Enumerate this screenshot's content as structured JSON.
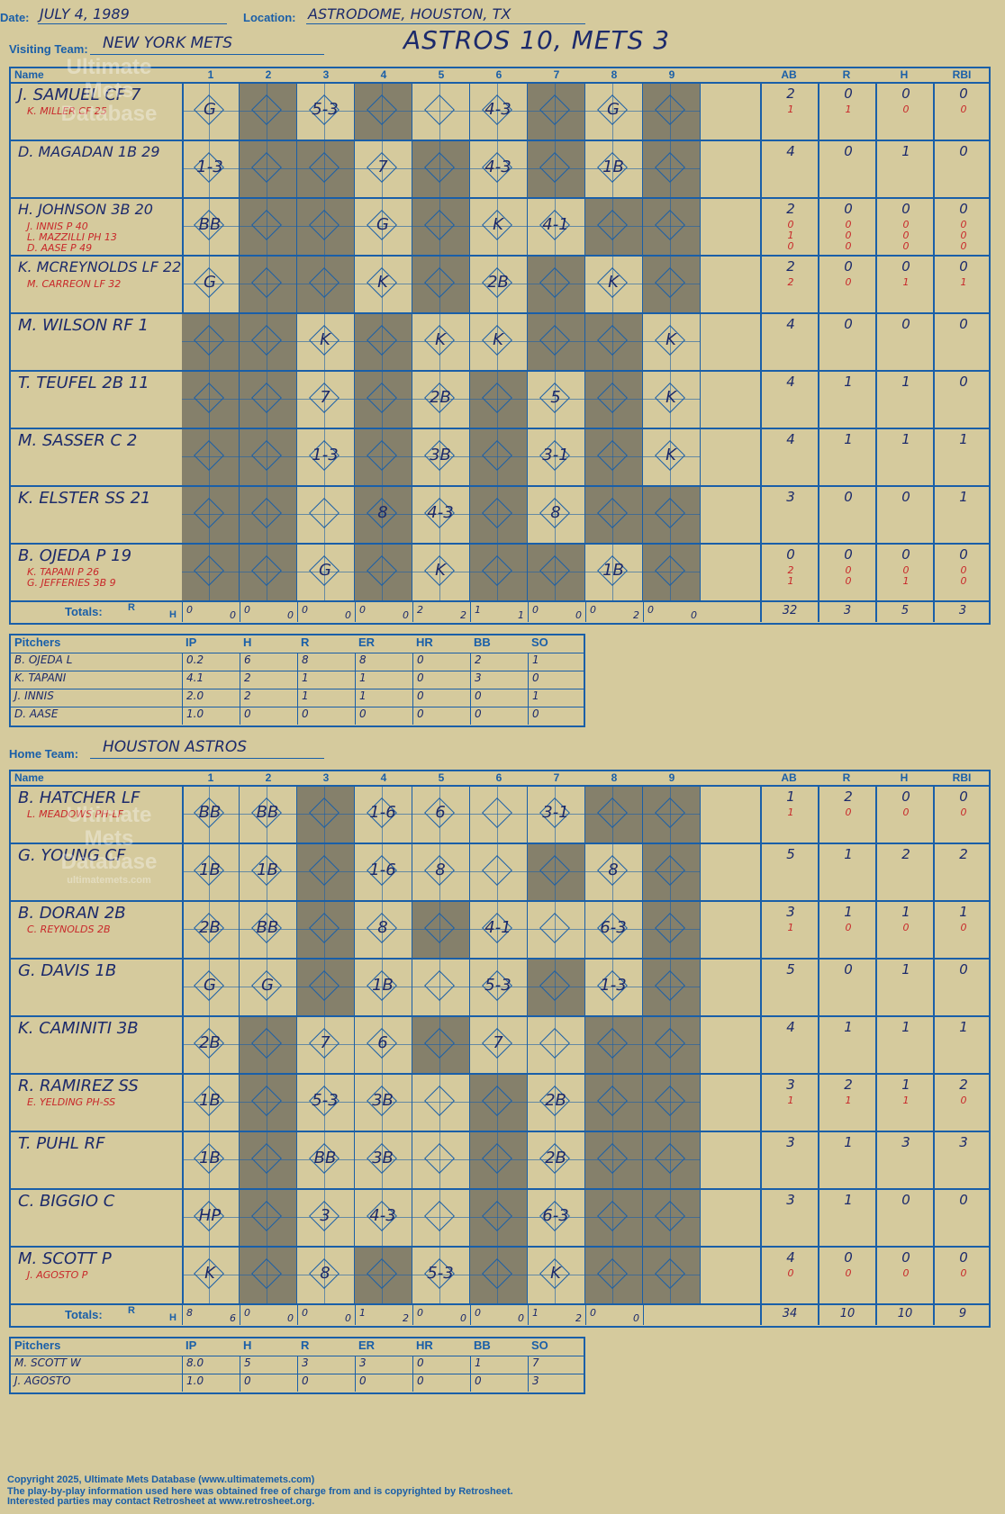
{
  "header": {
    "date_label": "Date:",
    "date_value": "JULY 4, 1989",
    "location_label": "Location:",
    "location_value": "ASTRODOME, HOUSTON, TX",
    "visiting_label": "Visiting Team:",
    "visiting_value": "NEW YORK METS",
    "home_label": "Home Team:",
    "home_value": "HOUSTON ASTROS",
    "result": "ASTROS 10, METS 3"
  },
  "grid_headers": {
    "name": "Name",
    "innings": [
      "1",
      "2",
      "3",
      "4",
      "5",
      "6",
      "7",
      "8",
      "9"
    ],
    "stats": [
      "AB",
      "R",
      "H",
      "RBI"
    ],
    "totals": "Totals:",
    "r": "R",
    "h": "H"
  },
  "watermark": {
    "line1": "Ultimate",
    "line2": "Mets",
    "line3": "Database",
    "url": "ultimatemets.com"
  },
  "visitors": {
    "batters": [
      {
        "name": "J. SAMUEL CF  7",
        "subs": [
          "K. MILLER CF  25"
        ],
        "stats": [
          "2",
          "0",
          "0",
          "0"
        ],
        "subs_stats": [
          [
            "1",
            "1",
            "0",
            "0"
          ]
        ],
        "plays": {
          "1": "G",
          "3": "5-3",
          "6": "4-3",
          "8": "G"
        }
      },
      {
        "name": "D. MAGADAN 1B  29",
        "subs": [],
        "stats": [
          "4",
          "0",
          "1",
          "0"
        ],
        "subs_stats": [],
        "plays": {
          "1": "1-3",
          "4": "7",
          "6": "4-3",
          "8": "1B"
        }
      },
      {
        "name": "H. JOHNSON 3B  20",
        "subs": [
          "J. INNIS P  40",
          "L. MAZZILLI PH  13",
          "D. AASE P  49"
        ],
        "stats": [
          "2",
          "0",
          "0",
          "0"
        ],
        "subs_stats": [
          [
            "0",
            "0",
            "0",
            "0"
          ],
          [
            "1",
            "0",
            "0",
            "0"
          ],
          [
            "0",
            "0",
            "0",
            "0"
          ]
        ],
        "plays": {
          "1": "BB",
          "4": "G",
          "6": "K",
          "7": "4-1"
        }
      },
      {
        "name": "K. MCREYNOLDS LF  22",
        "subs": [
          "M. CARREON LF  32"
        ],
        "stats": [
          "2",
          "0",
          "0",
          "0"
        ],
        "subs_stats": [
          [
            "2",
            "0",
            "1",
            "1"
          ]
        ],
        "plays": {
          "1": "G",
          "4": "K",
          "6": "2B",
          "8": "K"
        }
      },
      {
        "name": "M. WILSON RF  1",
        "subs": [],
        "stats": [
          "4",
          "0",
          "0",
          "0"
        ],
        "subs_stats": [],
        "plays": {
          "3": "K",
          "5": "K",
          "6": "K",
          "9": "K"
        }
      },
      {
        "name": "T. TEUFEL 2B  11",
        "subs": [],
        "stats": [
          "4",
          "1",
          "1",
          "0"
        ],
        "subs_stats": [],
        "plays": {
          "3": "7",
          "5": "2B",
          "7": "5",
          "9": "K"
        }
      },
      {
        "name": "M. SASSER C  2",
        "subs": [],
        "stats": [
          "4",
          "1",
          "1",
          "1"
        ],
        "subs_stats": [],
        "plays": {
          "3": "1-3",
          "5": "3B",
          "7": "3-1",
          "9": "K"
        }
      },
      {
        "name": "K. ELSTER SS  21",
        "subs": [],
        "stats": [
          "3",
          "0",
          "0",
          "1"
        ],
        "subs_stats": [],
        "plays": {
          "4": "8",
          "5": "4-3",
          "7": "8"
        }
      },
      {
        "name": "B. OJEDA P  19",
        "subs": [
          "K. TAPANI P  26",
          "G. JEFFERIES 3B  9"
        ],
        "stats": [
          "0",
          "0",
          "0",
          "0"
        ],
        "subs_stats": [
          [
            "2",
            "0",
            "0",
            "0"
          ],
          [
            "1",
            "0",
            "1",
            "0"
          ]
        ],
        "plays": {
          "3": "G",
          "5": "K",
          "8": "1B"
        }
      }
    ],
    "totals": [
      [
        "0",
        "0"
      ],
      [
        "0",
        "0"
      ],
      [
        "0",
        "0"
      ],
      [
        "0",
        "0"
      ],
      [
        "2",
        "2"
      ],
      [
        "1",
        "1"
      ],
      [
        "0",
        "0"
      ],
      [
        "0",
        "2"
      ],
      [
        "0",
        "0"
      ]
    ],
    "totals_stats": [
      "32",
      "3",
      "5",
      "3"
    ],
    "pitchers": [
      {
        "name": "B. OJEDA  L",
        "ip": "0.2",
        "h": "6",
        "r": "8",
        "er": "8",
        "hr": "0",
        "bb": "2",
        "so": "1"
      },
      {
        "name": "K. TAPANI",
        "ip": "4.1",
        "h": "2",
        "r": "1",
        "er": "1",
        "hr": "0",
        "bb": "3",
        "so": "0"
      },
      {
        "name": "J. INNIS",
        "ip": "2.0",
        "h": "2",
        "r": "1",
        "er": "1",
        "hr": "0",
        "bb": "0",
        "so": "1"
      },
      {
        "name": "D. AASE",
        "ip": "1.0",
        "h": "0",
        "r": "0",
        "er": "0",
        "hr": "0",
        "bb": "0",
        "so": "0"
      }
    ]
  },
  "home": {
    "batters": [
      {
        "name": "B. HATCHER LF",
        "subs": [
          "L. MEADOWS PH-LF"
        ],
        "stats": [
          "1",
          "2",
          "0",
          "0"
        ],
        "subs_stats": [
          [
            "1",
            "0",
            "0",
            "0"
          ]
        ],
        "plays": {
          "1": "BB",
          "2": "BB",
          "4": "1-6",
          "5": "6",
          "7": "3-1"
        }
      },
      {
        "name": "G. YOUNG CF",
        "subs": [],
        "stats": [
          "5",
          "1",
          "2",
          "2"
        ],
        "subs_stats": [],
        "plays": {
          "1": "1B",
          "2": "1B",
          "4": "1-6",
          "5": "8",
          "8": "8"
        }
      },
      {
        "name": "B. DORAN 2B",
        "subs": [
          "C. REYNOLDS 2B"
        ],
        "stats": [
          "3",
          "1",
          "1",
          "1"
        ],
        "subs_stats": [
          [
            "1",
            "0",
            "0",
            "0"
          ]
        ],
        "plays": {
          "1": "2B",
          "2": "BB",
          "4": "8",
          "6": "4-1",
          "8": "6-3"
        }
      },
      {
        "name": "G. DAVIS 1B",
        "subs": [],
        "stats": [
          "5",
          "0",
          "1",
          "0"
        ],
        "subs_stats": [],
        "plays": {
          "1": "G",
          "2": "G",
          "4": "1B",
          "6": "5-3",
          "8": "1-3"
        }
      },
      {
        "name": "K. CAMINITI 3B",
        "subs": [],
        "stats": [
          "4",
          "1",
          "1",
          "1"
        ],
        "subs_stats": [],
        "plays": {
          "1": "2B",
          "3": "7",
          "4": "6",
          "6": "7"
        }
      },
      {
        "name": "R. RAMIREZ SS",
        "subs": [
          "E. YELDING PH-SS"
        ],
        "stats": [
          "3",
          "2",
          "1",
          "2"
        ],
        "subs_stats": [
          [
            "1",
            "1",
            "1",
            "0"
          ]
        ],
        "plays": {
          "1": "1B",
          "3": "5-3",
          "4": "3B",
          "7": "2B"
        }
      },
      {
        "name": "T. PUHL RF",
        "subs": [],
        "stats": [
          "3",
          "1",
          "3",
          "3"
        ],
        "subs_stats": [],
        "plays": {
          "1": "1B",
          "3": "BB",
          "4": "3B",
          "7": "2B"
        }
      },
      {
        "name": "C. BIGGIO C",
        "subs": [],
        "stats": [
          "3",
          "1",
          "0",
          "0"
        ],
        "subs_stats": [],
        "plays": {
          "1": "HP",
          "3": "3",
          "4": "4-3",
          "7": "6-3"
        }
      },
      {
        "name": "M. SCOTT P",
        "subs": [
          "J. AGOSTO P"
        ],
        "stats": [
          "4",
          "0",
          "0",
          "0"
        ],
        "subs_stats": [
          [
            "0",
            "0",
            "0",
            "0"
          ]
        ],
        "plays": {
          "1": "K",
          "3": "8",
          "5": "5-3",
          "7": "K"
        }
      }
    ],
    "totals": [
      [
        "8",
        "6"
      ],
      [
        "0",
        "0"
      ],
      [
        "0",
        "0"
      ],
      [
        "1",
        "2"
      ],
      [
        "0",
        "0"
      ],
      [
        "0",
        "0"
      ],
      [
        "1",
        "2"
      ],
      [
        "0",
        "0"
      ],
      [
        "",
        ""
      ]
    ],
    "totals_stats": [
      "34",
      "10",
      "10",
      "9"
    ],
    "pitchers": [
      {
        "name": "M. SCOTT  W",
        "ip": "8.0",
        "h": "5",
        "r": "3",
        "er": "3",
        "hr": "0",
        "bb": "1",
        "so": "7"
      },
      {
        "name": "J. AGOSTO",
        "ip": "1.0",
        "h": "0",
        "r": "0",
        "er": "0",
        "hr": "0",
        "bb": "0",
        "so": "3"
      }
    ]
  },
  "pitcher_headers": [
    "Pitchers",
    "IP",
    "H",
    "R",
    "ER",
    "HR",
    "BB",
    "SO"
  ],
  "footer": {
    "line1": "Copyright 2025, Ultimate Mets Database (www.ultimatemets.com)",
    "line2": "The play-by-play information used here was obtained free of charge from and is copyrighted by Retrosheet.",
    "line3": "Interested parties may contact Retrosheet at www.retrosheet.org."
  }
}
